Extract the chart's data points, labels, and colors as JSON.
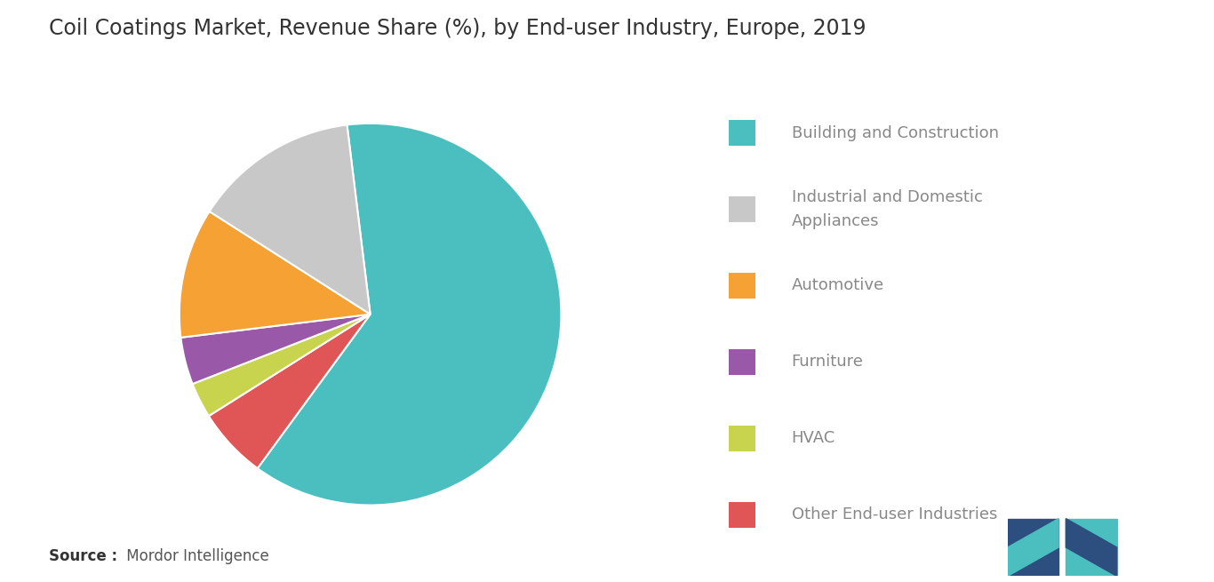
{
  "title": "Coil Coatings Market, Revenue Share (%), by End-user Industry, Europe, 2019",
  "legend_labels": [
    "Building and Construction",
    "Industrial and Domestic\nAppliances",
    "Automotive",
    "Furniture",
    "HVAC",
    "Other End-user Industries"
  ],
  "values": [
    62,
    14,
    11,
    4,
    3,
    6
  ],
  "colors": [
    "#4bbfc0",
    "#c8c8c8",
    "#f5a133",
    "#9958a8",
    "#c8d44e",
    "#e05555"
  ],
  "background_color": "#ffffff",
  "title_fontsize": 17,
  "source_bold": "Source :",
  "source_normal": " Mordor Intelligence",
  "startangle": 97,
  "wedge_edge_color": "#ffffff",
  "wedge_edge_width": 1.5,
  "legend_fontsize": 13,
  "legend_text_color": "#888888",
  "title_color": "#333333"
}
